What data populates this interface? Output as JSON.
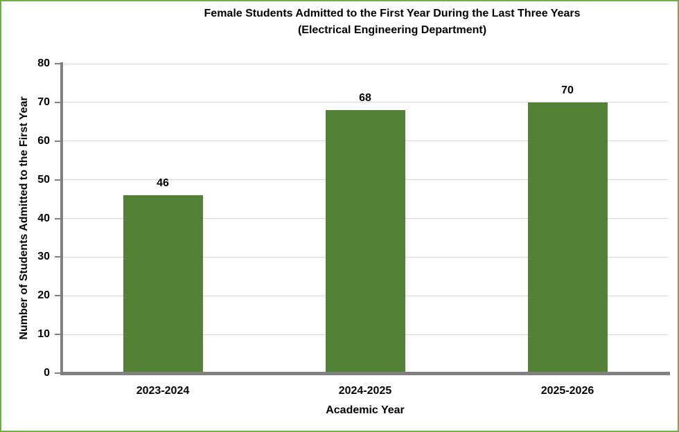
{
  "chart_data": {
    "type": "bar",
    "title": "Female Students Admitted to the First Year During the Last Three Years",
    "subtitle": "(Electrical Engineering Department)",
    "categories": [
      "2023-2024",
      "2024-2025",
      "2025-2026"
    ],
    "values": [
      46,
      68,
      70
    ],
    "data_labels": [
      "46",
      "68",
      "70"
    ],
    "xlabel": "Academic Year",
    "ylabel": "Number of Students Admitted to the First Year",
    "ylim": [
      0,
      80
    ],
    "yticks": [
      0,
      10,
      20,
      30,
      40,
      50,
      60,
      70,
      80
    ],
    "grid": "horizontal",
    "legend": "none",
    "colors": {
      "bar_fill": "#538135",
      "frame_border": "#70AD47",
      "axis_line": "#808080",
      "gridline": "#D9D9D9",
      "text": "#000000",
      "background": "#FFFFFF"
    }
  }
}
